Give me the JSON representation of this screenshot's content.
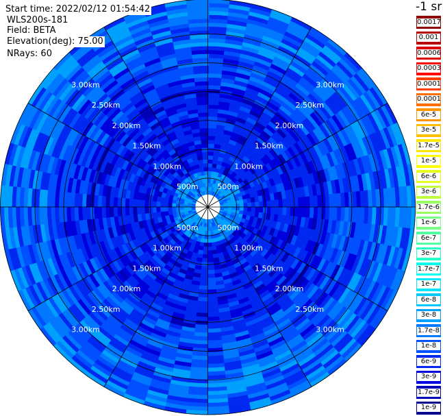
{
  "header": {
    "start_time": "Start time: 2022/02/12 01:54:42",
    "instrument": "WLS200s-181",
    "field": "Field: BETA",
    "elevation": "Elevation(deg): 75.00",
    "nrays": "NRays: 60"
  },
  "colorbar": {
    "unit_label": "-1 sr",
    "labels": [
      "0.0017",
      "0.001",
      "0.0006",
      "0.0003",
      "0.00017",
      "0.0001",
      "6e-5",
      "3e-5",
      "1.7e-5",
      "1e-5",
      "6e-6",
      "3e-6",
      "1.7e-6",
      "1e-6",
      "6e-7",
      "3e-7",
      "1.7e-7",
      "1e-7",
      "6e-8",
      "3e-8",
      "1.7e-8",
      "1e-8",
      "6e-9",
      "3e-9",
      "1.7e-9",
      "1e-9"
    ],
    "colors": [
      "#8c0000",
      "#b40000",
      "#dc0000",
      "#ff0000",
      "#ff3c00",
      "#ff6e00",
      "#ff9600",
      "#ffbe00",
      "#ffe600",
      "#ffff00",
      "#e6ff1e",
      "#bfff3c",
      "#96ff64",
      "#78ff82",
      "#50ffa0",
      "#28ffc8",
      "#00fff0",
      "#00e6ff",
      "#00c8ff",
      "#00a0ff",
      "#0078ff",
      "#0050ff",
      "#0028f0",
      "#0000dc",
      "#0000b4",
      "#00008c"
    ]
  },
  "chart_data": {
    "type": "heatmap",
    "projection": "polar-ppi",
    "field": "BETA",
    "elevation_deg": 75.0,
    "n_rays": 60,
    "range_rings": [
      "500m",
      "1.00km",
      "1.50km",
      "2.00km",
      "2.50km",
      "3.00km"
    ],
    "range_ring_values_km": [
      0.5,
      1.0,
      1.5,
      2.0,
      2.5,
      3.0
    ],
    "azimuth_spokes_deg": [
      0,
      30,
      60,
      90,
      120,
      150,
      180,
      210,
      240,
      270,
      300,
      330
    ],
    "value_palette": [
      "#0000b4",
      "#0000dc",
      "#0028f0",
      "#0050ff",
      "#0078ff",
      "#00a0ff"
    ]
  }
}
